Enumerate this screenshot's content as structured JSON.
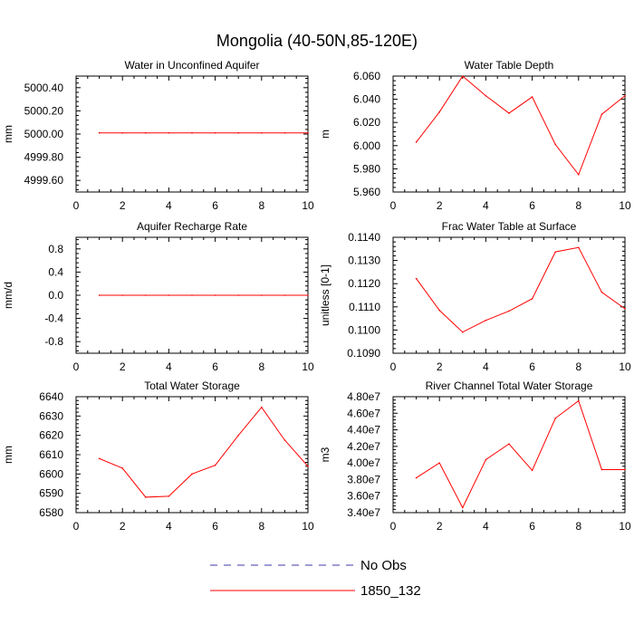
{
  "figure": {
    "title": "Mongolia (40-50N,85-120E)"
  },
  "colors": {
    "model_line": "#ff0000",
    "obs_line": "#3a3aa8",
    "axes": "#000000"
  },
  "legend": {
    "placement": "bottom-center",
    "entries": [
      {
        "label": "No Obs",
        "style": "dashed",
        "color": "#3a3aa8"
      },
      {
        "label": "1850_132",
        "style": "solid",
        "color": "#ff0000"
      }
    ]
  },
  "chart_data": [
    {
      "type": "line",
      "title": "Water in Unconfined Aquifer",
      "ylabel": "mm",
      "xlim": [
        0,
        10
      ],
      "ylim": [
        4999.5,
        5000.5
      ],
      "xticks": [
        0,
        2,
        4,
        6,
        8,
        10
      ],
      "yticks": [
        4999.6,
        4999.8,
        5000.0,
        5000.2,
        5000.4
      ],
      "ytick_labels": [
        "4999.60",
        "4999.80",
        "5000.00",
        "5000.20",
        "5000.40"
      ],
      "x": [
        1,
        2,
        3,
        4,
        5,
        6,
        7,
        8,
        9,
        10
      ],
      "series": [
        {
          "name": "1850_132",
          "values": [
            5000.01,
            5000.01,
            5000.01,
            5000.01,
            5000.01,
            5000.01,
            5000.01,
            5000.01,
            5000.01,
            5000.01
          ]
        }
      ]
    },
    {
      "type": "line",
      "title": "Water Table Depth",
      "ylabel": "m",
      "xlim": [
        0,
        10
      ],
      "ylim": [
        5.96,
        6.06
      ],
      "xticks": [
        0,
        2,
        4,
        6,
        8,
        10
      ],
      "yticks": [
        5.96,
        5.98,
        6.0,
        6.02,
        6.04,
        6.06
      ],
      "ytick_labels": [
        "5.960",
        "5.980",
        "6.000",
        "6.020",
        "6.040",
        "6.060"
      ],
      "x": [
        1,
        2,
        3,
        4,
        5,
        6,
        7,
        8,
        9,
        10
      ],
      "series": [
        {
          "name": "1850_132",
          "values": [
            6.003,
            6.029,
            6.06,
            6.043,
            6.028,
            6.042,
            6.001,
            5.975,
            6.027,
            6.043
          ]
        }
      ]
    },
    {
      "type": "line",
      "title": "Aquifer Recharge Rate",
      "ylabel": "mm/d",
      "xlim": [
        0,
        10
      ],
      "ylim": [
        -1.0,
        1.0
      ],
      "xticks": [
        0,
        2,
        4,
        6,
        8,
        10
      ],
      "yticks": [
        -0.8,
        -0.4,
        0.0,
        0.4,
        0.8
      ],
      "ytick_labels": [
        "-0.8",
        "-0.4",
        "0.0",
        "0.4",
        "0.8"
      ],
      "x": [
        1,
        2,
        3,
        4,
        5,
        6,
        7,
        8,
        9,
        10
      ],
      "series": [
        {
          "name": "1850_132",
          "values": [
            0,
            0,
            0,
            0,
            0,
            0,
            0,
            0,
            0,
            0
          ]
        }
      ]
    },
    {
      "type": "line",
      "title": "Frac Water Table at Surface",
      "ylabel": "unitless [0-1]",
      "xlim": [
        0,
        10
      ],
      "ylim": [
        0.109,
        0.114
      ],
      "xticks": [
        0,
        2,
        4,
        6,
        8,
        10
      ],
      "yticks": [
        0.109,
        0.11,
        0.111,
        0.112,
        0.113,
        0.114
      ],
      "ytick_labels": [
        "0.1090",
        "0.1100",
        "0.1110",
        "0.1120",
        "0.1130",
        "0.1140"
      ],
      "x": [
        1,
        2,
        3,
        4,
        5,
        6,
        7,
        8,
        9,
        10
      ],
      "series": [
        {
          "name": "1850_132",
          "values": [
            0.11222,
            0.11085,
            0.10991,
            0.11042,
            0.11082,
            0.11135,
            0.11337,
            0.11356,
            0.11163,
            0.11092
          ]
        }
      ]
    },
    {
      "type": "line",
      "title": "Total Water Storage",
      "ylabel": "mm",
      "xlim": [
        0,
        10
      ],
      "ylim": [
        6580,
        6640
      ],
      "xticks": [
        0,
        2,
        4,
        6,
        8,
        10
      ],
      "yticks": [
        6580,
        6590,
        6600,
        6610,
        6620,
        6630,
        6640
      ],
      "ytick_labels": [
        "6580",
        "6590",
        "6600",
        "6610",
        "6620",
        "6630",
        "6640"
      ],
      "x": [
        1,
        2,
        3,
        4,
        5,
        6,
        7,
        8,
        9,
        10
      ],
      "series": [
        {
          "name": "1850_132",
          "values": [
            6608,
            6603,
            6588,
            6588.5,
            6600,
            6604.5,
            6620,
            6634.5,
            6617.5,
            6604
          ]
        }
      ]
    },
    {
      "type": "line",
      "title": "River Channel Total Water Storage",
      "ylabel": "m3",
      "xlim": [
        0,
        10
      ],
      "ylim": [
        34000000,
        48000000
      ],
      "xticks": [
        0,
        2,
        4,
        6,
        8,
        10
      ],
      "yticks": [
        34000000,
        36000000,
        38000000,
        40000000,
        42000000,
        44000000,
        46000000,
        48000000
      ],
      "ytick_labels": [
        "3.40e7",
        "3.60e7",
        "3.80e7",
        "4.00e7",
        "4.20e7",
        "4.40e7",
        "4.60e7",
        "4.80e7"
      ],
      "x": [
        1,
        2,
        3,
        4,
        5,
        6,
        7,
        8,
        9,
        10
      ],
      "series": [
        {
          "name": "1850_132",
          "values": [
            38200000,
            40000000,
            34600000,
            40400000,
            42300000,
            39100000,
            45400000,
            47500000,
            39200000,
            39200000
          ]
        }
      ]
    }
  ]
}
